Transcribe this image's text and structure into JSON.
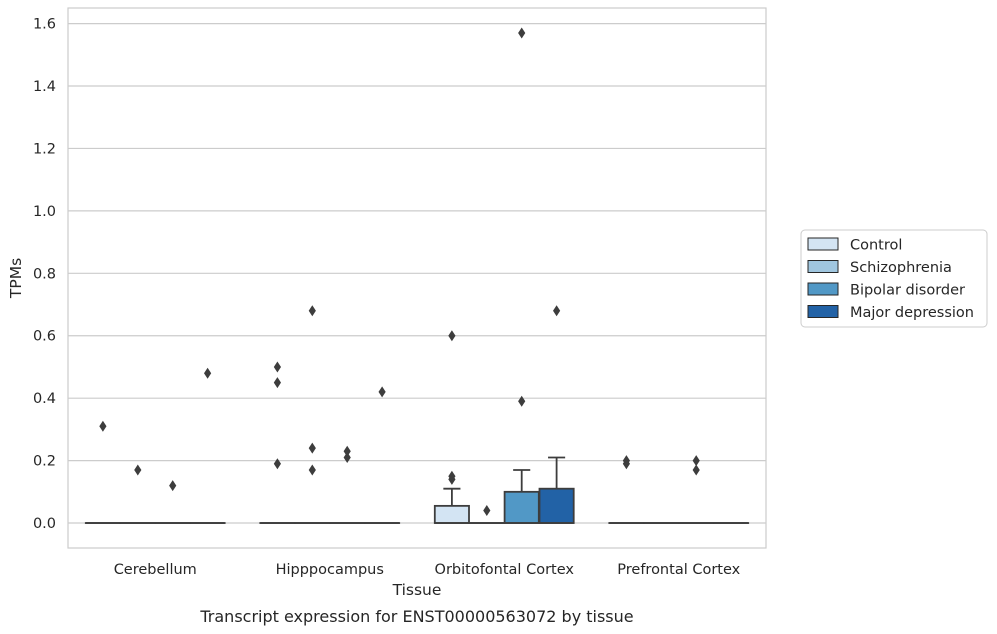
{
  "chart_data": {
    "type": "box",
    "xlabel": "Tissue",
    "ylabel": "TPMs",
    "caption": "Transcript expression for ENST00000563072 by tissue",
    "ylim": [
      -0.08,
      1.65
    ],
    "yticks": [
      0.0,
      0.2,
      0.4,
      0.6,
      0.8,
      1.0,
      1.2,
      1.4,
      1.6
    ],
    "ytick_labels": [
      "0.0",
      "0.2",
      "0.4",
      "0.6",
      "0.8",
      "1.0",
      "1.2",
      "1.4",
      "1.6"
    ],
    "grid": "horizontal",
    "legend_placement": "right",
    "categories": [
      "Cerebellum",
      "Hipppocampus",
      "Orbitofontal Cortex",
      "Prefrontal Cortex"
    ],
    "series": [
      {
        "name": "Control",
        "color": "#d3e4f3",
        "boxes": [
          {
            "q1": 0,
            "median": 0,
            "q3": 0,
            "whisker_low": 0,
            "whisker_high": 0,
            "outliers": [
              0.31
            ]
          },
          {
            "q1": 0,
            "median": 0,
            "q3": 0,
            "whisker_low": 0,
            "whisker_high": 0,
            "outliers": [
              0.19,
              0.45,
              0.5
            ]
          },
          {
            "q1": 0,
            "median": 0,
            "q3": 0.055,
            "whisker_low": 0,
            "whisker_high": 0.11,
            "outliers": [
              0.14,
              0.15,
              0.6
            ]
          },
          {
            "q1": 0,
            "median": 0,
            "q3": 0,
            "whisker_low": 0,
            "whisker_high": 0,
            "outliers": [
              0.19,
              0.2
            ]
          }
        ]
      },
      {
        "name": "Schizophrenia",
        "color": "#a0c6df",
        "boxes": [
          {
            "q1": 0,
            "median": 0,
            "q3": 0,
            "whisker_low": 0,
            "whisker_high": 0,
            "outliers": [
              0.17
            ]
          },
          {
            "q1": 0,
            "median": 0,
            "q3": 0,
            "whisker_low": 0,
            "whisker_high": 0,
            "outliers": [
              0.17,
              0.24,
              0.68
            ]
          },
          {
            "q1": 0,
            "median": 0,
            "q3": 0,
            "whisker_low": 0,
            "whisker_high": 0,
            "outliers": [
              0.04
            ]
          },
          {
            "q1": 0,
            "median": 0,
            "q3": 0,
            "whisker_low": 0,
            "whisker_high": 0,
            "outliers": []
          }
        ]
      },
      {
        "name": "Bipolar disorder",
        "color": "#5198c6",
        "boxes": [
          {
            "q1": 0,
            "median": 0,
            "q3": 0,
            "whisker_low": 0,
            "whisker_high": 0,
            "outliers": [
              0.12
            ]
          },
          {
            "q1": 0,
            "median": 0,
            "q3": 0,
            "whisker_low": 0,
            "whisker_high": 0,
            "outliers": [
              0.21,
              0.23
            ]
          },
          {
            "q1": 0,
            "median": 0,
            "q3": 0.1,
            "whisker_low": 0,
            "whisker_high": 0.17,
            "outliers": [
              0.39,
              1.57
            ]
          },
          {
            "q1": 0,
            "median": 0,
            "q3": 0,
            "whisker_low": 0,
            "whisker_high": 0,
            "outliers": [
              0.17,
              0.2
            ]
          }
        ]
      },
      {
        "name": "Major depression",
        "color": "#2262a6",
        "boxes": [
          {
            "q1": 0,
            "median": 0,
            "q3": 0,
            "whisker_low": 0,
            "whisker_high": 0,
            "outliers": [
              0.48
            ]
          },
          {
            "q1": 0,
            "median": 0,
            "q3": 0,
            "whisker_low": 0,
            "whisker_high": 0,
            "outliers": [
              0.42
            ]
          },
          {
            "q1": 0,
            "median": 0,
            "q3": 0.11,
            "whisker_low": 0,
            "whisker_high": 0.21,
            "outliers": [
              0.68
            ]
          },
          {
            "q1": 0,
            "median": 0,
            "q3": 0,
            "whisker_low": 0,
            "whisker_high": 0,
            "outliers": []
          }
        ]
      }
    ]
  }
}
